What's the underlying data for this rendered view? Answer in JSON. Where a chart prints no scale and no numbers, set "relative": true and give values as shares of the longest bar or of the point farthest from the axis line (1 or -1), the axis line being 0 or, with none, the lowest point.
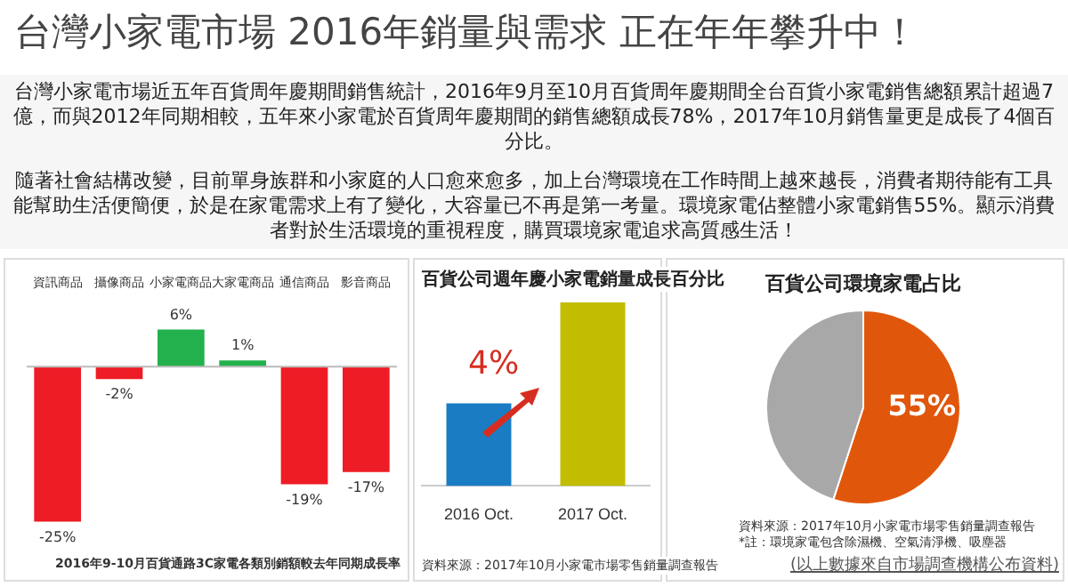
{
  "chart_data": [
    {
      "type": "other",
      "title": "台灣小家電市場 2016年銷量與需求 正在年年攀升中！",
      "annotations": [
        "台灣小家電市場近五年百貨周年慶期間銷售統計，2016年9月至10月百貨周年慶期間全台百貨小家電銷售總額累計超過7億，而與2012年同期相較，五年來小家電於百貨周年慶期間的銷售總額成長78%，2017年10月銷售量更是成長了4個百分比。",
        "隨著社會結構改變，目前單身族群和小家庭的人口愈來愈多，加上台灣環境在工作時間上越來越長，消費者期待能有工具能幫助生活便簡便，於是在家電需求上有了變化，大容量已不再是第一考量。環境家電佔整體小家電銷售55%。顯示消費者對於生活環境的重視程度，購買環境家電追求高質感生活！"
      ]
    },
    {
      "type": "bar",
      "categories": [
        "資訊商品",
        "攝像商品",
        "小家電商品",
        "大家電商品",
        "通信商品",
        "影音商品"
      ],
      "values": [
        -25,
        -2,
        6,
        1,
        -19,
        -17
      ],
      "colors": [
        "#ee1c25",
        "#ee1c25",
        "#22b14c",
        "#22b14c",
        "#ee1c25",
        "#ee1c25"
      ],
      "value_labels": [
        "-25%",
        "-2%",
        "6%",
        "1%",
        "-19%",
        "-17%"
      ],
      "annotations": [
        "2016年9-10月百貨通路3C家電各類別銷額較去年同期成長率"
      ]
    },
    {
      "type": "bar",
      "title": "百貨公司週年慶小家電銷量成長百分比",
      "categories": [
        "2016 Oct.",
        "2017 Oct."
      ],
      "relative": true,
      "values": [
        0.45,
        1
      ],
      "colors": [
        "#1a7dc4",
        "#c2bd00"
      ],
      "annotations": [
        "4%",
        "資料來源：2017年10月小家電市場零售銷量調查報告"
      ]
    },
    {
      "type": "pie",
      "title": "百貨公司環境家電占比",
      "categories": [
        null,
        null
      ],
      "values": [
        55,
        45
      ],
      "colors": [
        "#e0570c",
        "#a8a8a8"
      ],
      "value_labels": [
        "55%",
        null
      ],
      "annotations": [
        "資料來源：2017年10月小家電市場零售銷量調查報告",
        "*註：環境家電包含除濕機、空氣清淨機、吸塵器",
        "(以上數據來自市場調查機構公布資料)"
      ]
    }
  ]
}
